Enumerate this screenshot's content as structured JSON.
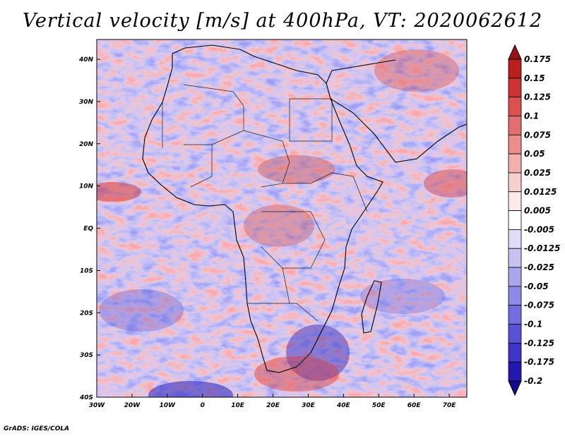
{
  "title": "Vertical velocity [m/s] at 400hPa, VT: 2020062612",
  "credit": "GrADS: IGES/COLA",
  "map": {
    "region": "Africa",
    "lon_labels": [
      "30W",
      "20W",
      "10W",
      "0",
      "10E",
      "20E",
      "30E",
      "40E",
      "50E",
      "60E",
      "70E"
    ],
    "lat_labels": [
      "40N",
      "30N",
      "20N",
      "10N",
      "EQ",
      "10S",
      "20S",
      "30S",
      "40S"
    ],
    "lon_range": [
      -30,
      75
    ],
    "lat_range": [
      -40,
      45
    ]
  },
  "colorbar": {
    "labels": [
      "0.175",
      "0.15",
      "0.125",
      "0.1",
      "0.075",
      "0.05",
      "0.025",
      "0.0125",
      "0.005",
      "-0.005",
      "-0.0125",
      "-0.025",
      "-0.05",
      "-0.075",
      "-0.1",
      "-0.125",
      "-0.175",
      "-0.2"
    ],
    "colors": [
      "#9b1111",
      "#b82020",
      "#cc3333",
      "#dd5050",
      "#e26f6f",
      "#ea8e8e",
      "#f2b0b0",
      "#f8cfcf",
      "#fdeaea",
      "#ffffff",
      "#dedcf8",
      "#c6c3f2",
      "#aaa6ec",
      "#8f89e6",
      "#746ddf",
      "#5a52d6",
      "#3d34c9",
      "#2417b0",
      "#160a8f"
    ]
  }
}
